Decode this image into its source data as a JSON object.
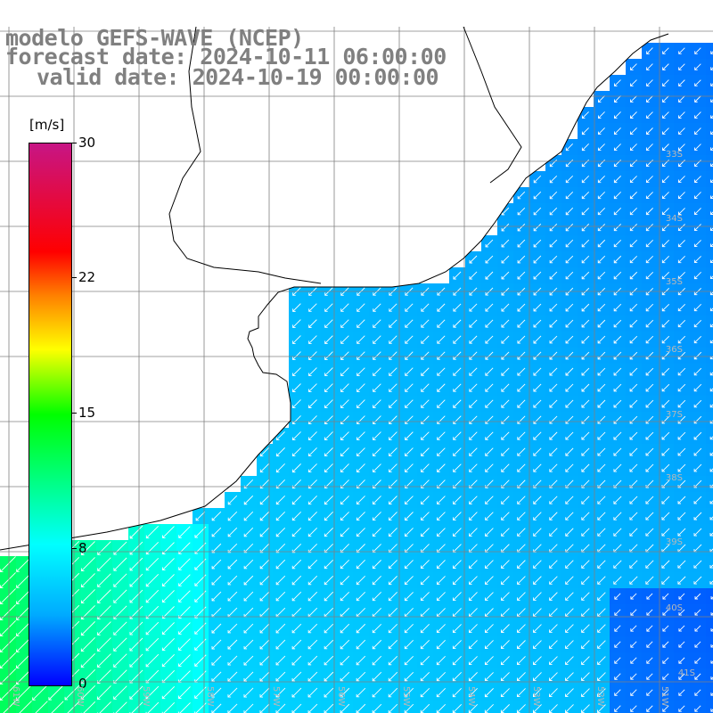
{
  "title": {
    "line1": "modelo GEFS-WAVE (NCEP)",
    "line2": "forecast date: 2024-10-11 06:00:00",
    "line3": "valid date: 2024-10-19 00:00:00"
  },
  "colorbar": {
    "unit": "[m/s]",
    "ticks": [
      "30",
      "22",
      "15",
      "8",
      "0"
    ],
    "tick_values": [
      30,
      22,
      15,
      8,
      0
    ],
    "colors": [
      "#0000ff",
      "#00aaff",
      "#00ffff",
      "#00ff00",
      "#ffff00",
      "#ff7f00",
      "#ff0000",
      "#c71585"
    ]
  },
  "lat_labels": [
    "33S",
    "34S",
    "35S",
    "36S",
    "37S",
    "38S",
    "39S",
    "40S",
    "41S"
  ],
  "lon_labels": [
    "61W",
    "60W",
    "59W",
    "58W",
    "57W",
    "56W",
    "55W",
    "54W",
    "53W",
    "52W",
    "51W"
  ],
  "chart_data": {
    "type": "heatmap",
    "variable": "wind speed",
    "unit": "m/s",
    "value_range": [
      0,
      30
    ],
    "wind_direction": "from north-east towards south-west",
    "speed_by_region": {
      "coastal_north_uruguay": 6,
      "rio_de_la_plata_estuary": 5,
      "open_ocean_east": 4,
      "far_southeast": 2,
      "southwest_near_coast": 12
    }
  },
  "map_colors": {
    "grid": "#808080",
    "coast": "#000000",
    "land": "#ffffff",
    "arrows": "#ffffff"
  }
}
